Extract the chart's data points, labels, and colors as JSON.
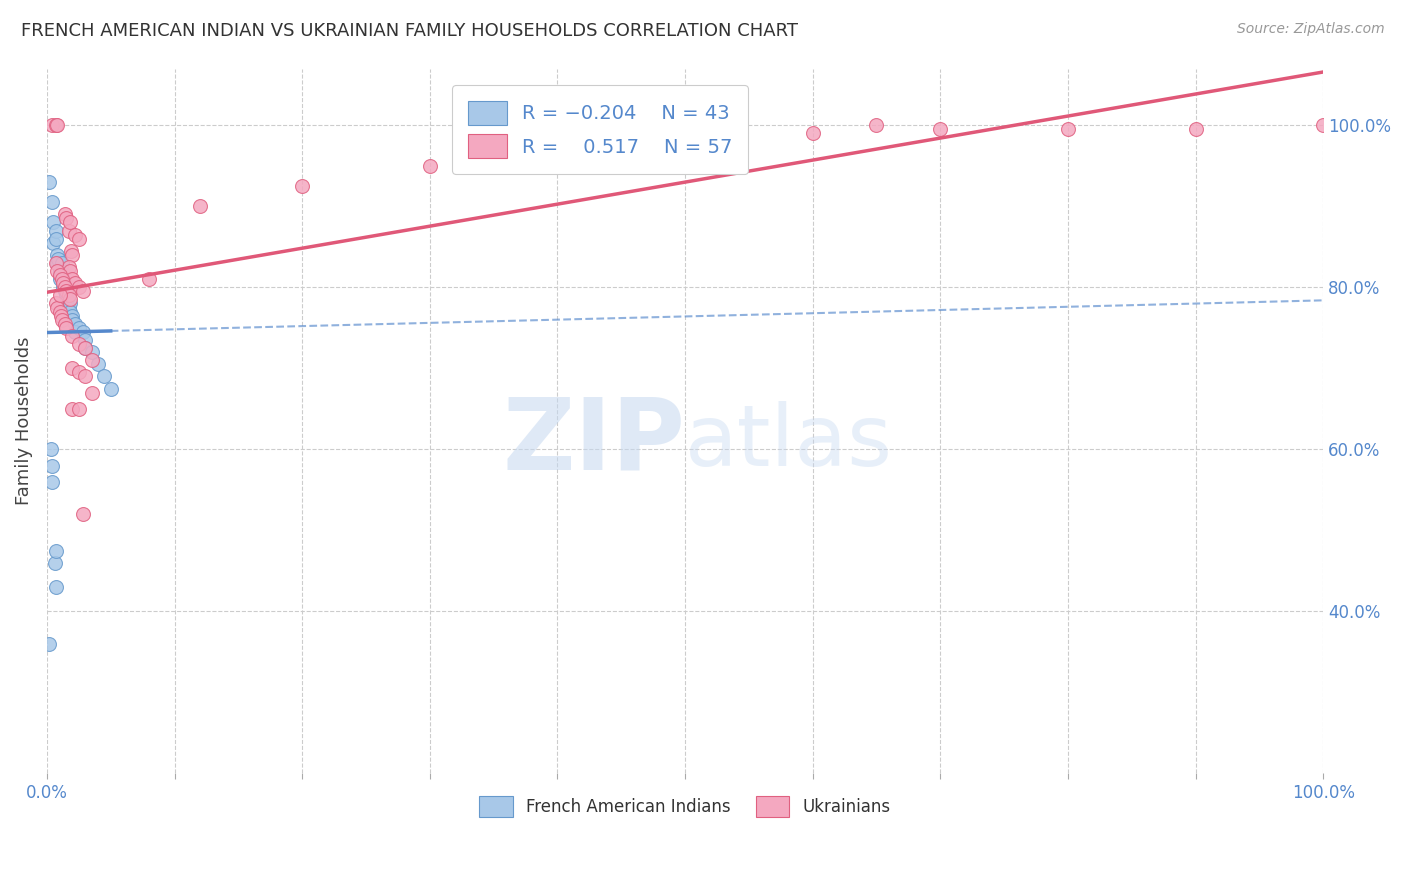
{
  "title": "FRENCH AMERICAN INDIAN VS UKRAINIAN FAMILY HOUSEHOLDS CORRELATION CHART",
  "source": "Source: ZipAtlas.com",
  "ylabel": "Family Households",
  "watermark_zip": "ZIP",
  "watermark_atlas": "atlas",
  "blue_color": "#A8C8E8",
  "pink_color": "#F4A8C0",
  "blue_edge_color": "#6699CC",
  "pink_edge_color": "#E06080",
  "blue_line_color": "#5588CC",
  "pink_line_color": "#E05878",
  "blue_scatter": [
    [
      0.2,
      93.0
    ],
    [
      0.4,
      90.5
    ],
    [
      0.5,
      88.0
    ],
    [
      0.5,
      85.5
    ],
    [
      0.7,
      87.0
    ],
    [
      0.7,
      86.0
    ],
    [
      0.8,
      84.0
    ],
    [
      0.8,
      83.0
    ],
    [
      0.9,
      83.5
    ],
    [
      1.0,
      82.0
    ],
    [
      1.0,
      81.0
    ],
    [
      1.1,
      81.5
    ],
    [
      1.2,
      82.0
    ],
    [
      1.2,
      83.0
    ],
    [
      1.3,
      81.0
    ],
    [
      1.3,
      80.0
    ],
    [
      1.4,
      79.5
    ],
    [
      1.4,
      80.5
    ],
    [
      1.5,
      79.0
    ],
    [
      1.5,
      78.0
    ],
    [
      1.6,
      78.5
    ],
    [
      1.7,
      77.5
    ],
    [
      1.8,
      78.0
    ],
    [
      1.8,
      77.0
    ],
    [
      2.0,
      76.5
    ],
    [
      2.0,
      76.0
    ],
    [
      2.2,
      75.5
    ],
    [
      2.2,
      74.5
    ],
    [
      2.5,
      75.0
    ],
    [
      2.8,
      74.5
    ],
    [
      3.0,
      73.5
    ],
    [
      3.0,
      72.5
    ],
    [
      3.5,
      72.0
    ],
    [
      4.0,
      70.5
    ],
    [
      4.5,
      69.0
    ],
    [
      5.0,
      67.5
    ],
    [
      0.3,
      60.0
    ],
    [
      0.4,
      58.0
    ],
    [
      0.4,
      56.0
    ],
    [
      0.6,
      46.0
    ],
    [
      0.7,
      47.5
    ],
    [
      0.7,
      43.0
    ],
    [
      0.2,
      36.0
    ]
  ],
  "pink_scatter": [
    [
      0.4,
      100.0
    ],
    [
      0.7,
      100.0
    ],
    [
      0.8,
      100.0
    ],
    [
      1.4,
      89.0
    ],
    [
      1.5,
      88.5
    ],
    [
      1.7,
      87.0
    ],
    [
      1.8,
      88.0
    ],
    [
      2.2,
      86.5
    ],
    [
      2.5,
      86.0
    ],
    [
      1.9,
      84.5
    ],
    [
      2.0,
      84.0
    ],
    [
      1.7,
      82.5
    ],
    [
      1.8,
      82.0
    ],
    [
      2.0,
      81.0
    ],
    [
      2.2,
      80.5
    ],
    [
      2.5,
      80.0
    ],
    [
      2.8,
      79.5
    ],
    [
      0.7,
      83.0
    ],
    [
      0.8,
      82.0
    ],
    [
      1.0,
      81.5
    ],
    [
      1.2,
      81.0
    ],
    [
      1.3,
      80.5
    ],
    [
      1.4,
      80.0
    ],
    [
      1.5,
      79.5
    ],
    [
      1.7,
      79.0
    ],
    [
      1.8,
      78.5
    ],
    [
      0.7,
      78.0
    ],
    [
      0.8,
      77.5
    ],
    [
      1.0,
      77.0
    ],
    [
      1.1,
      76.5
    ],
    [
      1.2,
      76.0
    ],
    [
      1.4,
      75.5
    ],
    [
      1.5,
      75.0
    ],
    [
      2.0,
      74.0
    ],
    [
      2.5,
      73.0
    ],
    [
      3.0,
      72.5
    ],
    [
      3.5,
      71.0
    ],
    [
      2.0,
      70.0
    ],
    [
      2.5,
      69.5
    ],
    [
      3.0,
      69.0
    ],
    [
      3.5,
      67.0
    ],
    [
      2.0,
      65.0
    ],
    [
      2.5,
      65.0
    ],
    [
      2.8,
      52.0
    ],
    [
      1.0,
      79.0
    ],
    [
      8.0,
      81.0
    ],
    [
      60.0,
      99.0
    ],
    [
      65.0,
      100.0
    ],
    [
      100.0,
      100.0
    ],
    [
      12.0,
      90.0
    ],
    [
      20.0,
      92.5
    ],
    [
      30.0,
      95.0
    ],
    [
      42.0,
      97.0
    ],
    [
      50.0,
      97.5
    ],
    [
      70.0,
      99.5
    ],
    [
      80.0,
      99.5
    ],
    [
      90.0,
      99.5
    ]
  ],
  "xlim": [
    0.0,
    100.0
  ],
  "ylim": [
    20.0,
    107.0
  ],
  "blue_solid_x_end": 5.0,
  "right_yticks": [
    100.0,
    80.0,
    60.0,
    40.0
  ],
  "right_yticklabels": [
    "100.0%",
    "80.0%",
    "60.0%",
    "40.0%"
  ],
  "xtick_vals": [
    0,
    10,
    20,
    30,
    40,
    50,
    60,
    70,
    80,
    90,
    100
  ],
  "grid_color": "#CCCCCC",
  "title_fontsize": 13,
  "source_fontsize": 10,
  "tick_fontsize": 12,
  "legend_fontsize": 14
}
